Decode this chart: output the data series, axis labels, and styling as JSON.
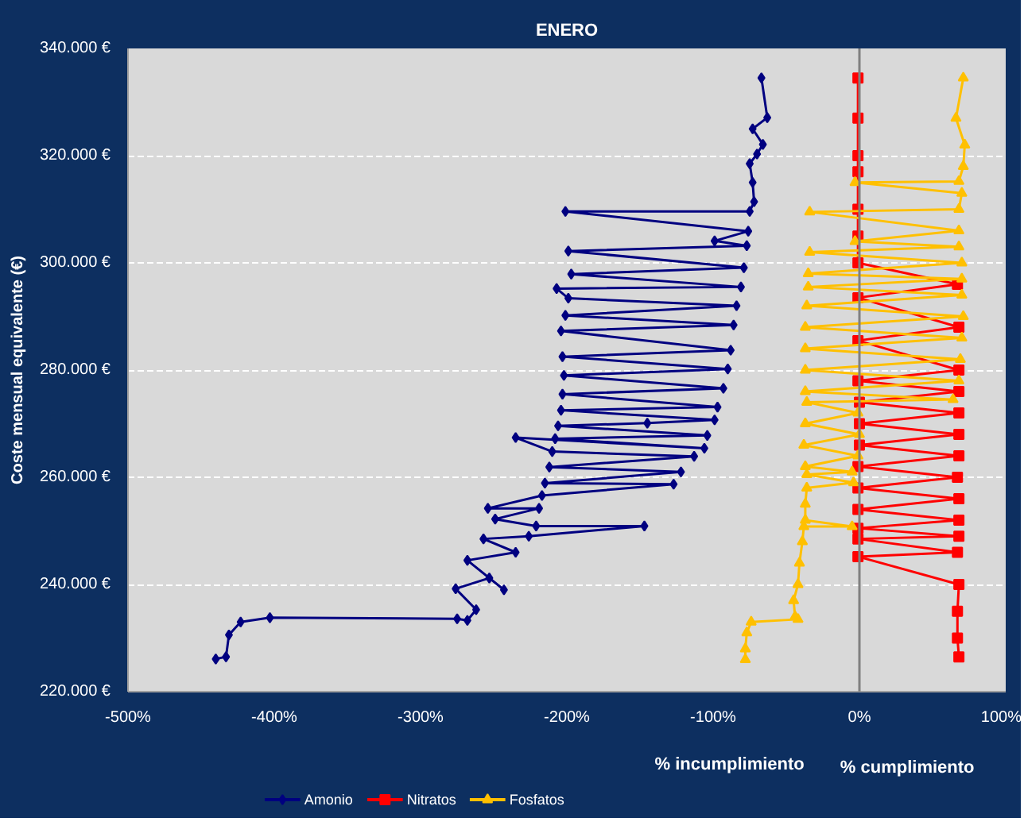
{
  "chart_data": {
    "type": "line",
    "title": "ENERO",
    "ylabel": "Coste mensual equivalente (€)",
    "annotations": [
      "% incumplimiento",
      "% cumplimiento"
    ],
    "xlim": [
      -500,
      100
    ],
    "xticks": [
      {
        "value": -500,
        "label": "-500%"
      },
      {
        "value": -400,
        "label": "-400%"
      },
      {
        "value": -300,
        "label": "-300%"
      },
      {
        "value": -200,
        "label": "-200%"
      },
      {
        "value": -100,
        "label": "-100%"
      },
      {
        "value": 0,
        "label": "0%"
      },
      {
        "value": 100,
        "label": "100%"
      }
    ],
    "ylim": [
      220000,
      340000
    ],
    "yticks": [
      {
        "value": 220000,
        "label": "220.000 €"
      },
      {
        "value": 240000,
        "label": "240.000 €"
      },
      {
        "value": 260000,
        "label": "260.000 €"
      },
      {
        "value": 280000,
        "label": "280.000 €"
      },
      {
        "value": 300000,
        "label": "300.000 €"
      },
      {
        "value": 320000,
        "label": "320.000 €"
      },
      {
        "value": 340000,
        "label": "340.000 €"
      }
    ],
    "grid": "y",
    "legend": "bottom left",
    "ref_lines": [
      {
        "axis": "x",
        "value": 0,
        "color": "#808080"
      }
    ],
    "series": [
      {
        "name": "Amonio",
        "color": "#000080",
        "marker": "diamond",
        "x": [
          -440,
          -433,
          -431,
          -423,
          -403,
          -275,
          -268,
          -262,
          -276,
          -253,
          -243,
          -268,
          -235,
          -257,
          -226,
          -147,
          -221,
          -249,
          -219,
          -254,
          -217,
          -127,
          -215,
          -122,
          -212,
          -113,
          -210,
          -235,
          -106,
          -208,
          -104,
          -206,
          -145,
          -99,
          -204,
          -97,
          -203,
          -93,
          -202,
          -90,
          -203,
          -88,
          -204,
          -86,
          -201,
          -84,
          -199,
          -207,
          -81,
          -197,
          -79,
          -199,
          -77,
          -99,
          -76,
          -201,
          -75,
          -72,
          -73,
          -75,
          -70,
          -66,
          -73,
          -63,
          -67
        ],
        "values": [
          226100,
          226500,
          230600,
          233000,
          233800,
          233600,
          233300,
          235300,
          239200,
          241200,
          239000,
          244500,
          246000,
          248500,
          249000,
          250900,
          250900,
          252200,
          254200,
          254200,
          256600,
          258700,
          258900,
          261000,
          261900,
          263900,
          264800,
          267400,
          265400,
          267200,
          267800,
          269600,
          270100,
          270700,
          272500,
          273100,
          275500,
          276600,
          279000,
          280200,
          282500,
          283700,
          287300,
          288400,
          290200,
          292000,
          293400,
          295200,
          295500,
          297900,
          299100,
          302200,
          303200,
          304100,
          305900,
          309600,
          309600,
          311400,
          315000,
          318500,
          320300,
          322100,
          325000,
          327100,
          334500
        ]
      },
      {
        "name": "Nitratos",
        "color": "#ff0000",
        "marker": "square",
        "x": [
          68,
          67,
          67,
          68,
          -1,
          67,
          -1,
          68,
          -1,
          68,
          -1,
          68,
          -1,
          67,
          -1,
          68,
          0,
          68,
          0,
          68,
          0,
          68,
          -1,
          68,
          -1,
          68,
          -1,
          67,
          -1,
          -1,
          -1,
          -1,
          -1,
          -1,
          -1
        ],
        "values": [
          226500,
          230000,
          235000,
          240000,
          245200,
          246000,
          248500,
          249000,
          250500,
          252000,
          254000,
          256000,
          258000,
          260000,
          262000,
          264000,
          266000,
          268000,
          270000,
          272000,
          274000,
          276000,
          278000,
          280000,
          285500,
          288000,
          293500,
          296000,
          300000,
          305000,
          310000,
          317000,
          320000,
          327000,
          334500
        ]
      },
      {
        "name": "Fosfatos",
        "color": "#ffc000",
        "marker": "triangle",
        "x": [
          -78,
          -78,
          -77,
          -74,
          -42,
          -44,
          -45,
          -42,
          -41,
          -39,
          -38,
          -5,
          -37,
          -37,
          -36,
          -4,
          -36,
          -5,
          -37,
          -1,
          -38,
          0,
          -37,
          -1,
          -36,
          64,
          -37,
          68,
          -37,
          69,
          -37,
          70,
          -37,
          71,
          -36,
          70,
          -35,
          70,
          -35,
          70,
          -34,
          68,
          -3,
          68,
          -34,
          68,
          70,
          -3,
          68,
          71,
          72,
          66,
          71
        ],
        "values": [
          226000,
          228000,
          231000,
          233000,
          233500,
          234000,
          237000,
          240000,
          244000,
          248000,
          250800,
          250800,
          252000,
          255000,
          258000,
          259000,
          260500,
          261000,
          262000,
          264000,
          266000,
          268000,
          270000,
          272000,
          274000,
          274500,
          276000,
          278000,
          280000,
          282000,
          284000,
          286000,
          288000,
          290000,
          292000,
          294000,
          295500,
          297000,
          298000,
          300000,
          302000,
          303000,
          304000,
          306000,
          309500,
          310000,
          313000,
          315000,
          315200,
          318000,
          322000,
          327000,
          334500
        ]
      }
    ]
  }
}
